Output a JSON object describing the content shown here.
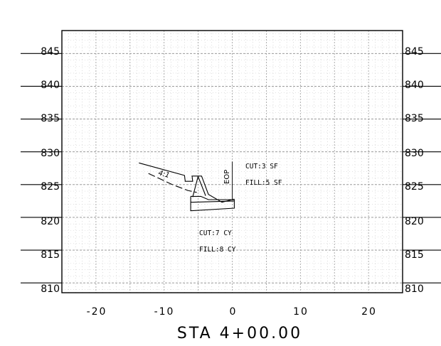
{
  "section": {
    "station_label": "STA 4+00.00",
    "elevation_labels": [
      "845",
      "840",
      "835",
      "830",
      "825",
      "820",
      "815",
      "810"
    ],
    "offset_labels": [
      "-20",
      "-10",
      "0",
      "10",
      "20"
    ],
    "annotations": {
      "slope": "4:1",
      "eop": "EOP",
      "cut_area": "CUT:3 SF",
      "fill_area": "FILL:5 SF",
      "cut_volume": "CUT:7 CY",
      "fill_volume": "FILL:8 CY"
    }
  },
  "chart_data": {
    "type": "line",
    "title": "STA 4+00.00",
    "xlabel": "",
    "ylabel": "",
    "xlim": [
      -25,
      25
    ],
    "ylim": [
      808.5,
      848.5
    ],
    "xticks": [
      -20,
      -10,
      0,
      10,
      20
    ],
    "yticks": [
      810,
      815,
      820,
      825,
      830,
      835,
      840,
      845
    ],
    "grid": true,
    "series": [
      {
        "values": [
          [
            -13.7,
            828.3
          ],
          [
            -7.0,
            826.4
          ],
          [
            -6.9,
            825.5
          ],
          [
            -5.8,
            825.5
          ],
          [
            -5.9,
            826.3
          ],
          [
            -4.5,
            826.3
          ],
          [
            -3.5,
            823.5
          ],
          [
            -1.5,
            822.3
          ],
          [
            0.3,
            822.8
          ]
        ]
      },
      {
        "values": [
          [
            -12.3,
            826.7
          ],
          [
            -8.8,
            825.0
          ],
          [
            -6.5,
            824.1
          ],
          [
            -5.2,
            823.8
          ]
        ]
      },
      {
        "values": [
          [
            -6.1,
            823.2
          ],
          [
            -4.6,
            823.2
          ],
          [
            -3.5,
            822.7
          ],
          [
            0.3,
            822.7
          ],
          [
            0.3,
            821.4
          ],
          [
            -6.1,
            821.0
          ],
          [
            -6.1,
            823.2
          ]
        ]
      },
      {
        "values": [
          [
            -6.1,
            822.3
          ],
          [
            0.3,
            822.5
          ]
        ]
      },
      {
        "values": [
          [
            -5.0,
            826.3
          ],
          [
            -5.8,
            823.1
          ]
        ]
      },
      {
        "values": [
          [
            -5.0,
            826.2
          ],
          [
            -3.9,
            823.3
          ]
        ]
      },
      {
        "values": [
          [
            0.0,
            828.5
          ],
          [
            0.0,
            822.6
          ]
        ]
      }
    ]
  }
}
